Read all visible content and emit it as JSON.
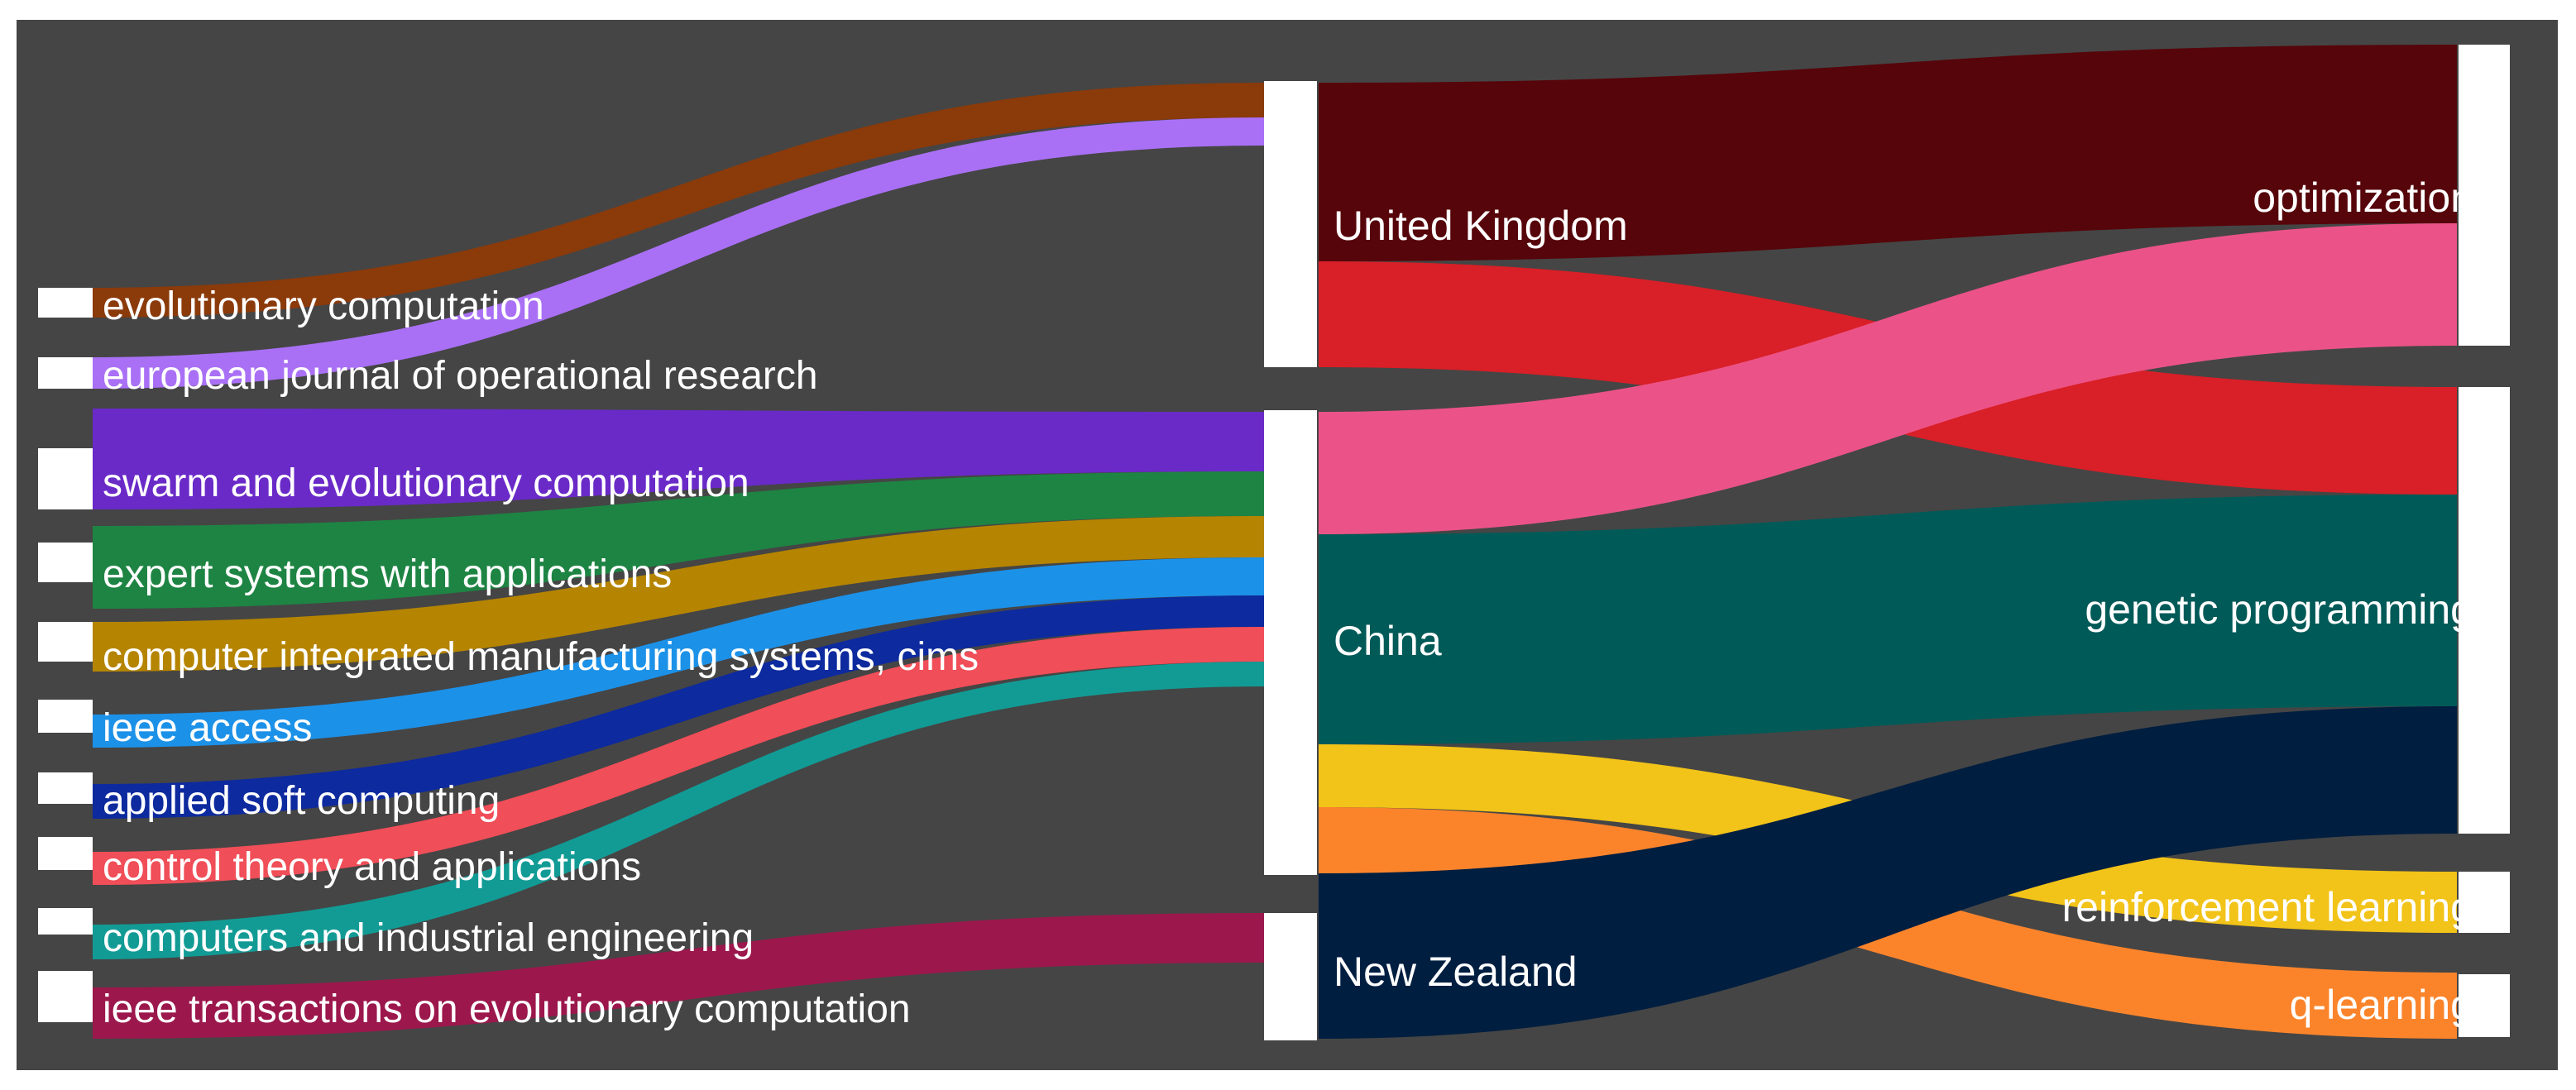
{
  "sources": [
    {
      "label": "evolutionary computation",
      "color": "#8b3a0a"
    },
    {
      "label": "european journal of operational research",
      "color": "#a970f5"
    },
    {
      "label": "swarm and evolutionary computation",
      "color": "#6a2ac8"
    },
    {
      "label": "expert systems with applications",
      "color": "#1e8443"
    },
    {
      "label": "computer integrated manufacturing systems, cims",
      "color": "#b58400"
    },
    {
      "label": "ieee access",
      "color": "#1c91e8"
    },
    {
      "label": "applied soft computing",
      "color": "#0d2a9e"
    },
    {
      "label": "control theory and applications",
      "color": "#f04e58"
    },
    {
      "label": "computers and industrial engineering",
      "color": "#129b95"
    },
    {
      "label": "ieee transactions on evolutionary computation",
      "color": "#9b174c"
    }
  ],
  "countries": [
    {
      "label": "United Kingdom"
    },
    {
      "label": "China"
    },
    {
      "label": "New Zealand"
    }
  ],
  "topics": [
    {
      "label": "optimization"
    },
    {
      "label": "genetic programming"
    },
    {
      "label": "reinforcement learning"
    },
    {
      "label": "q-learning"
    }
  ],
  "flow_colors": {
    "uk_optimization": "#56050a",
    "uk_genetic_programming": "#d91f27",
    "china_optimization": "#eb5388",
    "china_genetic_programming": "#005a58",
    "china_reinforcement_learning": "#f2c318",
    "china_q_learning": "#fb842b",
    "nz_genetic_programming": "#001e40"
  }
}
